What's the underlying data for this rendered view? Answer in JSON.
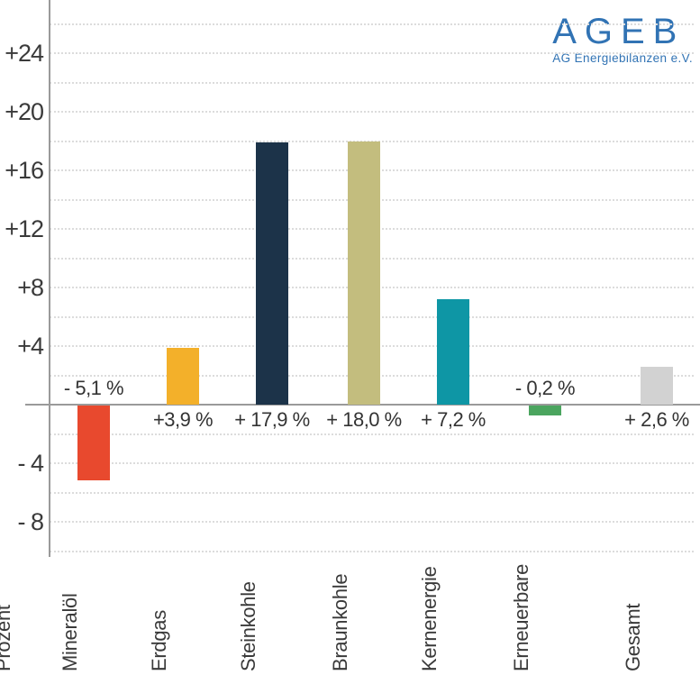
{
  "logo": {
    "title": "AGEB",
    "subtitle": "AG Energiebilanzen e.V.",
    "color": "#3173b4"
  },
  "chart_data": {
    "type": "bar",
    "title": "",
    "xlabel": "",
    "ylabel": "Prozent",
    "ylim": [
      -10,
      26
    ],
    "grid_step": 2,
    "grid_style": "dotted",
    "legend": "none",
    "axis_tick_labels": [
      {
        "value": 24,
        "label": "+24"
      },
      {
        "value": 20,
        "label": "+20"
      },
      {
        "value": 16,
        "label": "+16"
      },
      {
        "value": 12,
        "label": "+12"
      },
      {
        "value": 8,
        "label": "+8"
      },
      {
        "value": 4,
        "label": "+4"
      },
      {
        "value": -4,
        "label": "- 4"
      },
      {
        "value": -8,
        "label": "- 8"
      }
    ],
    "categories": [
      "Mineralöl",
      "Erdgas",
      "Steinkohle",
      "Braunkohle",
      "Kernenergie",
      "Erneuerbare",
      "Gesamt"
    ],
    "values": [
      -5.1,
      3.9,
      17.9,
      18.0,
      7.2,
      -0.2,
      2.6
    ],
    "bars": [
      {
        "category": "Mineralöl",
        "value": -5.1,
        "label": "- 5,1 %",
        "color": "#e8492e"
      },
      {
        "category": "Erdgas",
        "value": 3.9,
        "label": "+3,9 %",
        "color": "#f3b02a"
      },
      {
        "category": "Steinkohle",
        "value": 17.9,
        "label": "+ 17,9 %",
        "color": "#1c3349"
      },
      {
        "category": "Braunkohle",
        "value": 18.0,
        "label": "+ 18,0 %",
        "color": "#c3bd7e"
      },
      {
        "category": "Kernenergie",
        "value": 7.2,
        "label": "+ 7,2 %",
        "color": "#0e96a5"
      },
      {
        "category": "Erneuerbare",
        "value": -0.2,
        "label": "- 0,2 %",
        "color": "#4ba55f"
      },
      {
        "category": "Gesamt",
        "value": 2.6,
        "label": "+ 2,6 %",
        "color": "#d2d2d2"
      }
    ],
    "colors": {
      "axis_line": "#9a9a9a",
      "gridline": "#dcdcdc",
      "text": "#3a3a3a"
    }
  }
}
